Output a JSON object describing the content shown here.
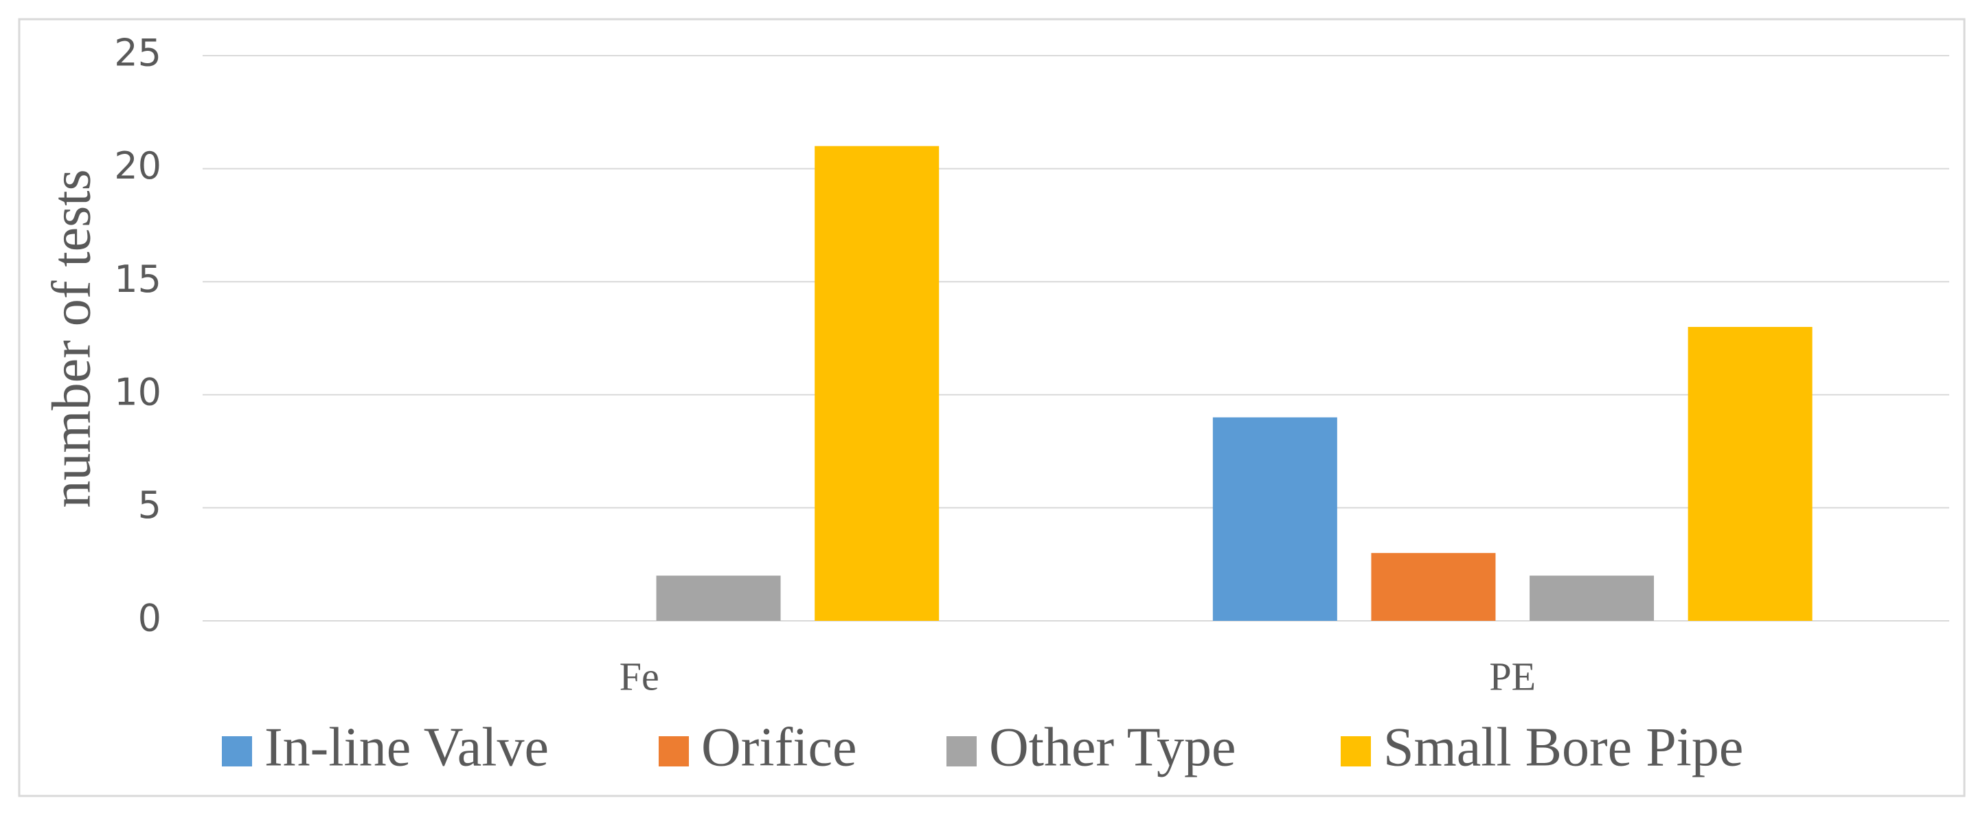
{
  "chart_data": {
    "type": "bar",
    "y_label": "number of tests",
    "categories": [
      "Fe",
      "PE"
    ],
    "series": [
      {
        "name": "In-line Valve",
        "color": "#5b9bd5",
        "values": [
          0,
          9
        ]
      },
      {
        "name": "Orifice",
        "color": "#ed7d31",
        "values": [
          0,
          3
        ]
      },
      {
        "name": "Other Type",
        "color": "#a5a5a5",
        "values": [
          2,
          2
        ]
      },
      {
        "name": "Small Bore Pipe",
        "color": "#ffc000",
        "values": [
          21,
          13
        ]
      }
    ],
    "ylim": [
      0,
      25
    ],
    "yticks": [
      0,
      5,
      10,
      15,
      20,
      25
    ],
    "grid": true,
    "legend": "bottom"
  }
}
